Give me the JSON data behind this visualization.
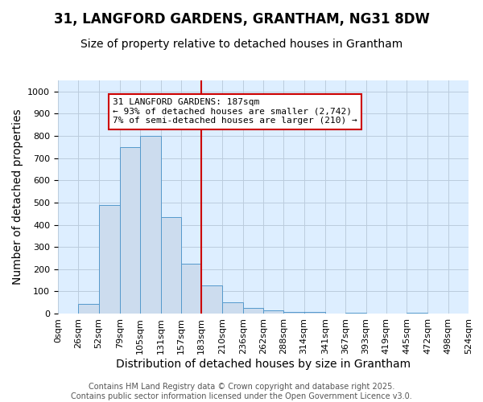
{
  "title": "31, LANGFORD GARDENS, GRANTHAM, NG31 8DW",
  "subtitle": "Size of property relative to detached houses in Grantham",
  "xlabel": "Distribution of detached houses by size in Grantham",
  "ylabel": "Number of detached properties",
  "bar_color": "#ccdcee",
  "bar_edge_color": "#5599cc",
  "background_color": "#ddeeff",
  "grid_color": "#bbccdd",
  "bin_edges": [
    0,
    26,
    52,
    79,
    105,
    131,
    157,
    183,
    210,
    236,
    262,
    288,
    314,
    341,
    367,
    393,
    419,
    445,
    472,
    498,
    524
  ],
  "bin_labels": [
    "0sqm",
    "26sqm",
    "52sqm",
    "79sqm",
    "105sqm",
    "131sqm",
    "157sqm",
    "183sqm",
    "210sqm",
    "236sqm",
    "262sqm",
    "288sqm",
    "314sqm",
    "341sqm",
    "367sqm",
    "393sqm",
    "419sqm",
    "445sqm",
    "472sqm",
    "498sqm",
    "524sqm"
  ],
  "bar_heights": [
    0,
    43,
    490,
    750,
    800,
    435,
    225,
    128,
    50,
    27,
    15,
    8,
    8,
    0,
    5,
    0,
    0,
    5,
    0,
    0
  ],
  "vline_x": 183,
  "vline_color": "#cc0000",
  "ylim": [
    0,
    1050
  ],
  "yticks": [
    0,
    100,
    200,
    300,
    400,
    500,
    600,
    700,
    800,
    900,
    1000
  ],
  "annotation_line1": "31 LANGFORD GARDENS: 187sqm",
  "annotation_line2": "← 93% of detached houses are smaller (2,742)",
  "annotation_line3": "7% of semi-detached houses are larger (210) →",
  "annotation_box_color": "#ffffff",
  "annotation_box_edge": "#cc0000",
  "footer_text": "Contains HM Land Registry data © Crown copyright and database right 2025.\nContains public sector information licensed under the Open Government Licence v3.0.",
  "title_fontsize": 12,
  "subtitle_fontsize": 10,
  "axis_label_fontsize": 10,
  "tick_fontsize": 8,
  "annotation_fontsize": 8,
  "footer_fontsize": 7
}
